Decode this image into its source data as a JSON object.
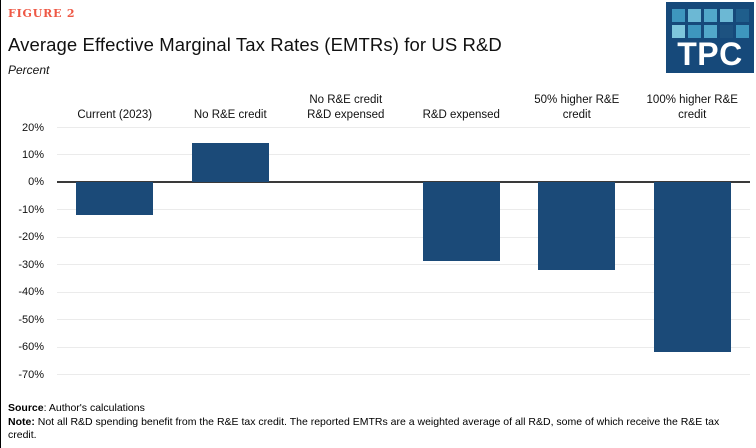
{
  "figure_label": "FIGURE 2",
  "title": "Average Effective Marginal Tax Rates (EMTRs) for US R&D",
  "y_axis_unit_label": "Percent",
  "logo": {
    "text": "TPC",
    "background": "#16497A",
    "square_colors": [
      [
        "#3E96BE",
        "#6CB8D4",
        "#52A8CA",
        "#6CB8D4",
        "#1F5E8C"
      ],
      [
        "#7EC6DC",
        "#3E96BE",
        "#52A8CA",
        "#1D5280",
        "#3E96BE"
      ]
    ]
  },
  "chart_data": {
    "type": "bar",
    "title": "Average Effective Marginal Tax Rates (EMTRs) for US R&D",
    "xlabel": "",
    "ylabel": "Percent",
    "categories": [
      "Current (2023)",
      "No R&E credit",
      "No R&E credit R&D expensed",
      "R&D expensed",
      "50% higher R&E credit",
      "100% higher R&E credit"
    ],
    "category_display_lines": [
      [
        "Current (2023)"
      ],
      [
        "No R&E credit"
      ],
      [
        "No R&E credit",
        "R&D expensed"
      ],
      [
        "R&D expensed"
      ],
      [
        "50% higher R&E",
        "credit"
      ],
      [
        "100% higher R&E",
        "credit"
      ]
    ],
    "values": [
      -12,
      14,
      0,
      -29,
      -32,
      -62
    ],
    "ylim": [
      -70,
      20
    ],
    "ytick_step": 10,
    "ytick_labels": [
      "20%",
      "10%",
      "0%",
      "-10%",
      "-20%",
      "-30%",
      "-40%",
      "-50%",
      "-60%",
      "-70%"
    ],
    "grid": true,
    "legend": "none"
  },
  "colors": {
    "figure_label": "#EE5845",
    "bar": "#1B4A78",
    "gridline": "#EBEBEB",
    "zero_line": "#3A3A3A"
  },
  "footer": {
    "source_label": "Source",
    "source_text": ": Author's calculations",
    "note_label": "Note:",
    "note_text": " Not all R&D spending benefit from the R&E tax credit. The reported EMTRs are a weighted average of all R&D, some of which receive the R&E tax credit."
  }
}
